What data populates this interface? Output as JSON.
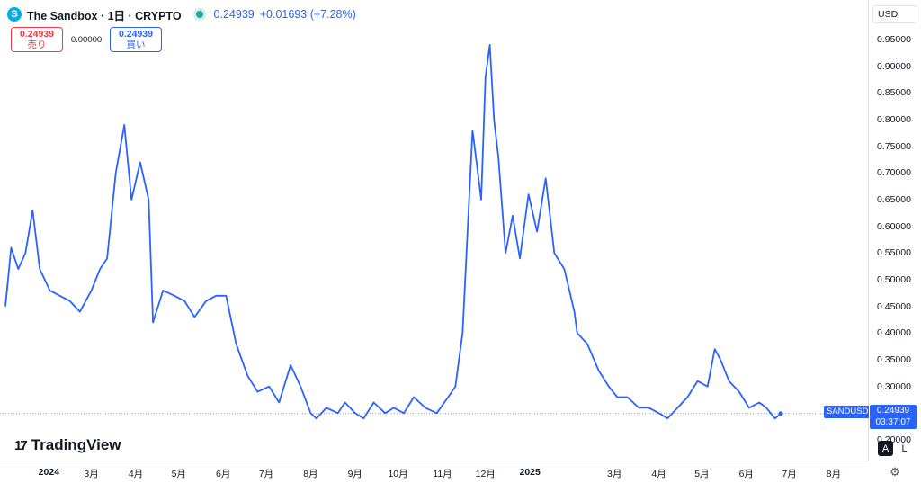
{
  "header": {
    "logo_letter": "S",
    "symbol_title": "The Sandbox · 1日 · CRYPTO",
    "last_price": "0.24939",
    "change": "+0.01693 (+7.28%)"
  },
  "trade": {
    "sell_price": "0.24939",
    "sell_label": "売り",
    "spread": "0.00000",
    "buy_price": "0.24939",
    "buy_label": "買い"
  },
  "currency": "USD",
  "price_axis_ticks": [
    "0.95000",
    "0.90000",
    "0.85000",
    "0.80000",
    "0.75000",
    "0.70000",
    "0.65000",
    "0.60000",
    "0.55000",
    "0.50000",
    "0.45000",
    "0.40000",
    "0.35000",
    "0.30000",
    "0.25000",
    "0.20000"
  ],
  "last_price_tag": {
    "symbol": "SANDUSD",
    "price": "0.24939",
    "countdown": "03:37:07"
  },
  "time_axis_labels": [
    "2024",
    "3月",
    "4月",
    "5月",
    "6月",
    "7月",
    "8月",
    "9月",
    "10月",
    "11月",
    "12月",
    "2025",
    "3月",
    "4月",
    "5月",
    "6月",
    "7月",
    "8月"
  ],
  "branding": {
    "name": "TradingView",
    "mark": "17"
  },
  "scale_buttons": {
    "auto": "A",
    "log": "L"
  },
  "colors": {
    "line": "#2962ff",
    "sell": "#f23645",
    "buy": "#2962ff",
    "status": "#22ab94"
  },
  "icons": {
    "settings": "gear-icon",
    "status": "market-status-icon"
  },
  "chart_data": {
    "type": "line",
    "title": "The Sandbox · 1日 · CRYPTO",
    "series": [
      {
        "name": "SANDUSD",
        "x": [
          "2024-01-01",
          "2024-01-05",
          "2024-01-10",
          "2024-01-15",
          "2024-01-20",
          "2024-01-25",
          "2024-02-01",
          "2024-02-08",
          "2024-02-15",
          "2024-02-22",
          "2024-03-01",
          "2024-03-07",
          "2024-03-12",
          "2024-03-18",
          "2024-03-24",
          "2024-03-29",
          "2024-04-04",
          "2024-04-10",
          "2024-04-13",
          "2024-04-20",
          "2024-04-28",
          "2024-05-05",
          "2024-05-12",
          "2024-05-20",
          "2024-05-27",
          "2024-06-03",
          "2024-06-10",
          "2024-06-18",
          "2024-06-25",
          "2024-07-03",
          "2024-07-10",
          "2024-07-18",
          "2024-07-25",
          "2024-08-01",
          "2024-08-05",
          "2024-08-12",
          "2024-08-20",
          "2024-08-25",
          "2024-09-01",
          "2024-09-07",
          "2024-09-14",
          "2024-09-22",
          "2024-09-28",
          "2024-10-05",
          "2024-10-12",
          "2024-10-20",
          "2024-10-28",
          "2024-11-05",
          "2024-11-10",
          "2024-11-15",
          "2024-11-22",
          "2024-11-28",
          "2024-12-01",
          "2024-12-04",
          "2024-12-07",
          "2024-12-10",
          "2024-12-15",
          "2024-12-20",
          "2024-12-25",
          "2024-12-31",
          "2025-01-06",
          "2025-01-12",
          "2025-01-18",
          "2025-01-25",
          "2025-02-01",
          "2025-02-03",
          "2025-02-10",
          "2025-02-18",
          "2025-02-25",
          "2025-03-03",
          "2025-03-10",
          "2025-03-18",
          "2025-03-25",
          "2025-04-01",
          "2025-04-07",
          "2025-04-14",
          "2025-04-21",
          "2025-04-28",
          "2025-05-05",
          "2025-05-10",
          "2025-05-14",
          "2025-05-20",
          "2025-05-27",
          "2025-06-03",
          "2025-06-10",
          "2025-06-15",
          "2025-06-21",
          "2025-06-25"
        ],
        "y": [
          0.45,
          0.56,
          0.52,
          0.55,
          0.63,
          0.52,
          0.48,
          0.47,
          0.46,
          0.44,
          0.48,
          0.52,
          0.54,
          0.7,
          0.79,
          0.65,
          0.72,
          0.65,
          0.42,
          0.48,
          0.47,
          0.46,
          0.43,
          0.46,
          0.47,
          0.47,
          0.38,
          0.32,
          0.29,
          0.3,
          0.27,
          0.34,
          0.3,
          0.25,
          0.24,
          0.26,
          0.25,
          0.27,
          0.25,
          0.24,
          0.27,
          0.25,
          0.26,
          0.25,
          0.28,
          0.26,
          0.25,
          0.28,
          0.3,
          0.4,
          0.78,
          0.65,
          0.88,
          0.94,
          0.8,
          0.73,
          0.55,
          0.62,
          0.54,
          0.66,
          0.59,
          0.69,
          0.55,
          0.52,
          0.44,
          0.4,
          0.38,
          0.33,
          0.3,
          0.28,
          0.28,
          0.26,
          0.26,
          0.25,
          0.24,
          0.26,
          0.28,
          0.31,
          0.3,
          0.37,
          0.35,
          0.31,
          0.29,
          0.26,
          0.27,
          0.26,
          0.24,
          0.249
        ]
      }
    ],
    "ylim": [
      0.185,
      0.975
    ],
    "y_scale": "linear",
    "last_value": 0.24939,
    "grid": false,
    "legend": "none"
  }
}
